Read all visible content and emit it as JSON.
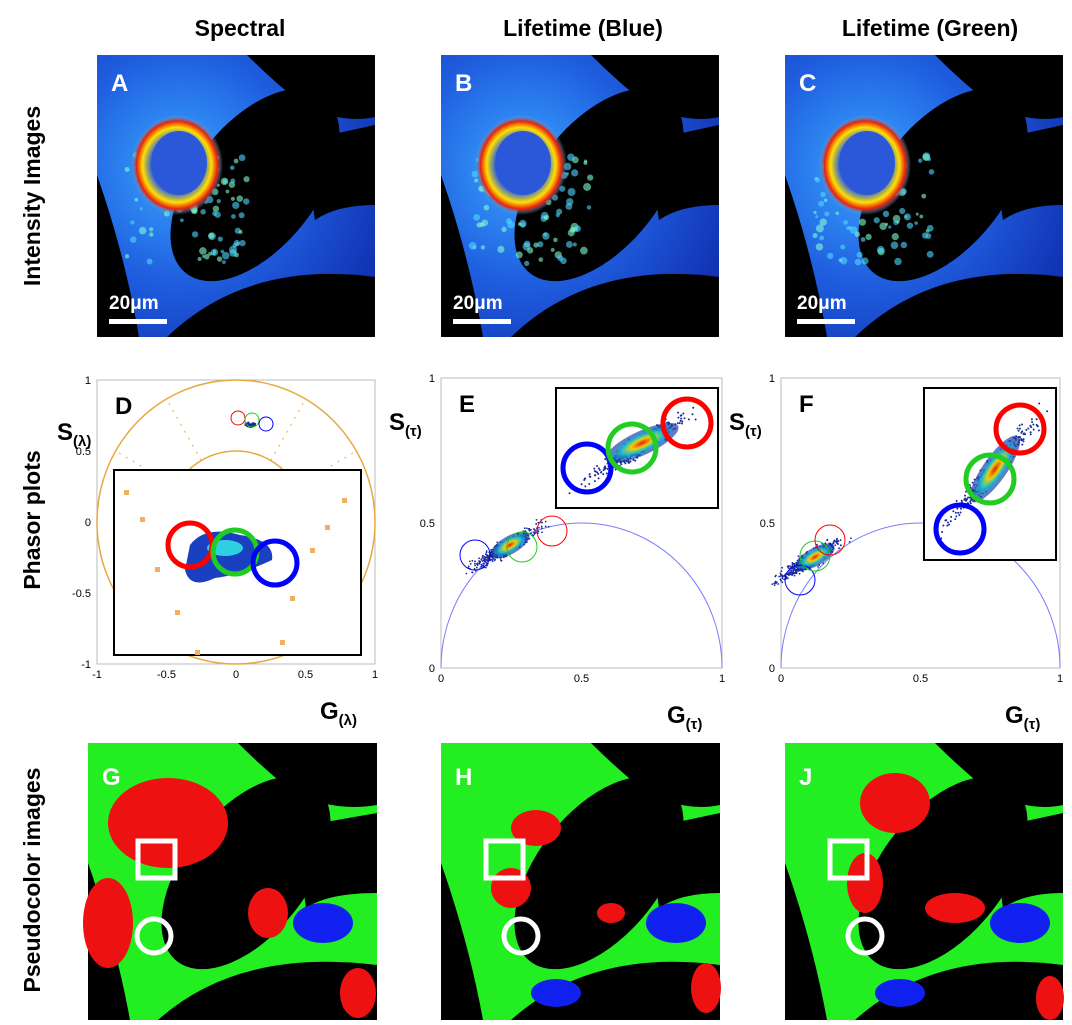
{
  "column_headers": [
    "Spectral",
    "Lifetime (Blue)",
    "Lifetime (Green)"
  ],
  "row_labels": [
    "Intensity Images",
    "Phasor plots",
    "Pseudocolor images"
  ],
  "intensity_panels": [
    {
      "letter": "A",
      "scale_bar": "20μm"
    },
    {
      "letter": "B",
      "scale_bar": "20μm"
    },
    {
      "letter": "C",
      "scale_bar": "20μm"
    }
  ],
  "phasor_panels": [
    {
      "letter": "D",
      "y_symbol": "S",
      "y_subscript": "(λ)",
      "x_symbol": "G",
      "x_subscript": "(λ)",
      "ticks": [
        -1,
        -0.5,
        0,
        0.5,
        1
      ]
    },
    {
      "letter": "E",
      "y_symbol": "S",
      "y_subscript": "(τ)",
      "x_symbol": "G",
      "x_subscript": "(τ)",
      "ticks": [
        0,
        0.5,
        1
      ]
    },
    {
      "letter": "F",
      "y_symbol": "S",
      "y_subscript": "(τ)",
      "x_symbol": "G",
      "x_subscript": "(τ)",
      "ticks": [
        0,
        0.5,
        1
      ]
    }
  ],
  "pseudocolor_panels": [
    {
      "letter": "G"
    },
    {
      "letter": "H"
    },
    {
      "letter": "J"
    }
  ]
}
